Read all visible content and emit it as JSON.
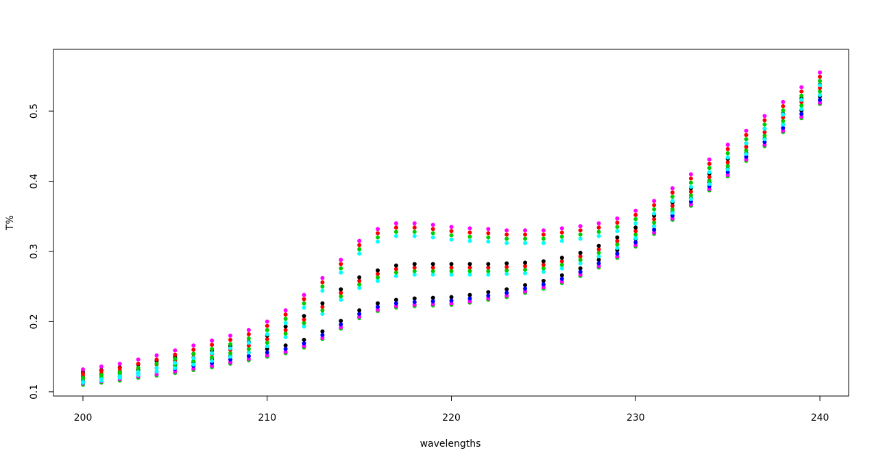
{
  "chart_data": {
    "type": "scatter",
    "xlabel": "wavelengths",
    "ylabel": "T%",
    "x": [
      200,
      201,
      202,
      203,
      204,
      205,
      206,
      207,
      208,
      209,
      210,
      211,
      212,
      213,
      214,
      215,
      216,
      217,
      218,
      219,
      220,
      221,
      222,
      223,
      224,
      225,
      226,
      227,
      228,
      229,
      230,
      231,
      232,
      233,
      234,
      235,
      236,
      237,
      238,
      239,
      240
    ],
    "xlim": [
      198.4,
      241.56
    ],
    "xticks": [
      200,
      210,
      220,
      230,
      240
    ],
    "ylim": [
      0.094,
      0.588
    ],
    "yticks": [
      0.1,
      0.2,
      0.3,
      0.4,
      0.5
    ],
    "grid": false,
    "series": [
      {
        "color": "#00CD00",
        "values": [
          0.11,
          0.113,
          0.116,
          0.12,
          0.123,
          0.127,
          0.131,
          0.135,
          0.14,
          0.145,
          0.15,
          0.155,
          0.163,
          0.175,
          0.19,
          0.205,
          0.215,
          0.22,
          0.222,
          0.223,
          0.224,
          0.227,
          0.231,
          0.235,
          0.241,
          0.247,
          0.255,
          0.265,
          0.277,
          0.291,
          0.307,
          0.325,
          0.345,
          0.365,
          0.387,
          0.407,
          0.429,
          0.45,
          0.47,
          0.49,
          0.51
        ]
      },
      {
        "color": "#FF00FF",
        "values": [
          0.112,
          0.115,
          0.118,
          0.122,
          0.125,
          0.129,
          0.133,
          0.137,
          0.142,
          0.147,
          0.152,
          0.157,
          0.165,
          0.177,
          0.192,
          0.207,
          0.217,
          0.222,
          0.224,
          0.225,
          0.226,
          0.229,
          0.233,
          0.237,
          0.243,
          0.249,
          0.257,
          0.267,
          0.279,
          0.293,
          0.309,
          0.327,
          0.347,
          0.367,
          0.389,
          0.409,
          0.431,
          0.452,
          0.472,
          0.492,
          0.512
        ]
      },
      {
        "color": "#000000",
        "values": [
          0.121,
          0.124,
          0.127,
          0.131,
          0.134,
          0.138,
          0.142,
          0.146,
          0.151,
          0.156,
          0.161,
          0.166,
          0.174,
          0.186,
          0.201,
          0.216,
          0.226,
          0.231,
          0.233,
          0.234,
          0.235,
          0.238,
          0.242,
          0.246,
          0.252,
          0.258,
          0.266,
          0.276,
          0.288,
          0.302,
          0.318,
          0.336,
          0.356,
          0.376,
          0.398,
          0.418,
          0.44,
          0.461,
          0.481,
          0.501,
          0.521
        ]
      },
      {
        "color": "#0000FF",
        "values": [
          0.116,
          0.119,
          0.122,
          0.126,
          0.129,
          0.133,
          0.137,
          0.141,
          0.146,
          0.151,
          0.156,
          0.161,
          0.169,
          0.181,
          0.196,
          0.211,
          0.221,
          0.226,
          0.228,
          0.229,
          0.23,
          0.233,
          0.237,
          0.241,
          0.247,
          0.253,
          0.261,
          0.271,
          0.283,
          0.297,
          0.313,
          0.331,
          0.351,
          0.371,
          0.393,
          0.413,
          0.435,
          0.456,
          0.476,
          0.496,
          0.516
        ]
      },
      {
        "color": "#00FFFF",
        "values": [
          0.113,
          0.116,
          0.12,
          0.124,
          0.129,
          0.134,
          0.139,
          0.144,
          0.15,
          0.156,
          0.165,
          0.178,
          0.193,
          0.211,
          0.231,
          0.248,
          0.258,
          0.265,
          0.267,
          0.267,
          0.267,
          0.267,
          0.267,
          0.268,
          0.269,
          0.271,
          0.276,
          0.283,
          0.293,
          0.305,
          0.319,
          0.336,
          0.355,
          0.375,
          0.396,
          0.417,
          0.439,
          0.46,
          0.481,
          0.503,
          0.523
        ]
      },
      {
        "color": "#00CD00",
        "values": [
          0.118,
          0.121,
          0.125,
          0.129,
          0.134,
          0.139,
          0.144,
          0.149,
          0.155,
          0.161,
          0.17,
          0.183,
          0.198,
          0.216,
          0.236,
          0.253,
          0.263,
          0.27,
          0.272,
          0.272,
          0.272,
          0.272,
          0.272,
          0.273,
          0.274,
          0.276,
          0.281,
          0.288,
          0.298,
          0.31,
          0.324,
          0.341,
          0.36,
          0.38,
          0.401,
          0.422,
          0.444,
          0.465,
          0.486,
          0.508,
          0.528
        ]
      },
      {
        "color": "#FF0000",
        "values": [
          0.123,
          0.126,
          0.13,
          0.134,
          0.139,
          0.144,
          0.149,
          0.154,
          0.16,
          0.166,
          0.175,
          0.188,
          0.203,
          0.221,
          0.241,
          0.258,
          0.268,
          0.275,
          0.277,
          0.277,
          0.277,
          0.277,
          0.277,
          0.278,
          0.279,
          0.281,
          0.286,
          0.293,
          0.303,
          0.315,
          0.329,
          0.346,
          0.365,
          0.385,
          0.406,
          0.427,
          0.449,
          0.47,
          0.491,
          0.513,
          0.533
        ]
      },
      {
        "color": "#000000",
        "values": [
          0.128,
          0.131,
          0.135,
          0.139,
          0.144,
          0.149,
          0.154,
          0.159,
          0.165,
          0.171,
          0.18,
          0.193,
          0.208,
          0.226,
          0.246,
          0.263,
          0.273,
          0.28,
          0.282,
          0.282,
          0.282,
          0.282,
          0.282,
          0.283,
          0.284,
          0.286,
          0.291,
          0.298,
          0.308,
          0.32,
          0.334,
          0.351,
          0.37,
          0.39,
          0.411,
          0.432,
          0.454,
          0.475,
          0.496,
          0.518,
          0.538
        ]
      },
      {
        "color": "#00FFFF",
        "values": [
          0.114,
          0.118,
          0.122,
          0.128,
          0.134,
          0.141,
          0.148,
          0.155,
          0.162,
          0.17,
          0.182,
          0.198,
          0.22,
          0.244,
          0.27,
          0.297,
          0.314,
          0.322,
          0.322,
          0.32,
          0.317,
          0.315,
          0.314,
          0.312,
          0.312,
          0.312,
          0.315,
          0.318,
          0.322,
          0.329,
          0.34,
          0.354,
          0.372,
          0.392,
          0.413,
          0.434,
          0.454,
          0.475,
          0.495,
          0.516,
          0.537
        ]
      },
      {
        "color": "#00CD00",
        "values": [
          0.12,
          0.124,
          0.128,
          0.134,
          0.14,
          0.147,
          0.154,
          0.161,
          0.168,
          0.176,
          0.188,
          0.204,
          0.226,
          0.25,
          0.276,
          0.303,
          0.32,
          0.328,
          0.328,
          0.326,
          0.323,
          0.321,
          0.32,
          0.318,
          0.318,
          0.318,
          0.321,
          0.324,
          0.328,
          0.335,
          0.346,
          0.36,
          0.378,
          0.398,
          0.419,
          0.44,
          0.46,
          0.481,
          0.501,
          0.522,
          0.543
        ]
      },
      {
        "color": "#FF0000",
        "values": [
          0.126,
          0.13,
          0.134,
          0.14,
          0.146,
          0.153,
          0.16,
          0.167,
          0.174,
          0.182,
          0.194,
          0.21,
          0.232,
          0.256,
          0.282,
          0.309,
          0.326,
          0.334,
          0.334,
          0.332,
          0.329,
          0.327,
          0.326,
          0.324,
          0.324,
          0.324,
          0.327,
          0.33,
          0.334,
          0.341,
          0.352,
          0.366,
          0.384,
          0.404,
          0.425,
          0.446,
          0.466,
          0.487,
          0.507,
          0.528,
          0.549
        ]
      },
      {
        "color": "#FF00FF",
        "values": [
          0.132,
          0.136,
          0.14,
          0.146,
          0.152,
          0.159,
          0.166,
          0.173,
          0.18,
          0.188,
          0.2,
          0.216,
          0.238,
          0.262,
          0.288,
          0.315,
          0.332,
          0.34,
          0.34,
          0.338,
          0.335,
          0.333,
          0.332,
          0.33,
          0.33,
          0.33,
          0.333,
          0.336,
          0.34,
          0.347,
          0.358,
          0.372,
          0.39,
          0.41,
          0.431,
          0.452,
          0.472,
          0.493,
          0.513,
          0.534,
          0.555
        ]
      }
    ]
  }
}
